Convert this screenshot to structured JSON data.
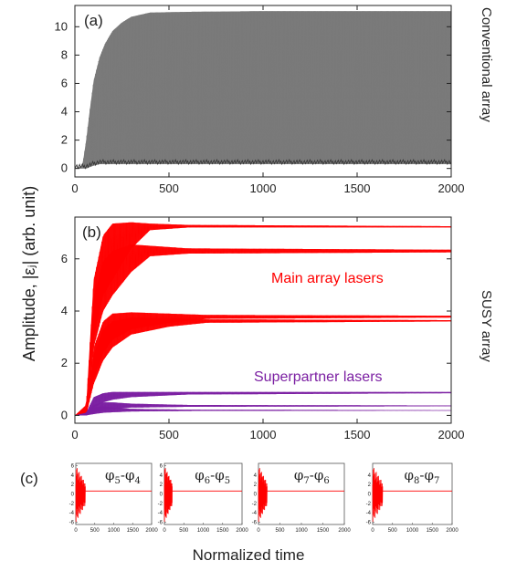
{
  "figure": {
    "xlabel": "Normalized time",
    "ylabel": "Amplitude, |εⱼ| (arb. unit)"
  },
  "chart_data": [
    {
      "id": "a",
      "panel_label": "(a)",
      "side_label": "Conventional array",
      "type": "area",
      "xlim": [
        0,
        2000
      ],
      "ylim": [
        -0.6,
        11.5
      ],
      "xticks": [
        0,
        500,
        1000,
        1500,
        2000
      ],
      "yticks": [
        0,
        2,
        4,
        6,
        8,
        10
      ],
      "colors": {
        "fill": "#7a7a7a",
        "edge": "#333333"
      },
      "series": [
        {
          "x": [
            0,
            40,
            60,
            80,
            100,
            130,
            160,
            200,
            250,
            300,
            400,
            600,
            1000,
            1500,
            2000
          ],
          "upper": [
            0,
            0.2,
            2.0,
            4.2,
            6.2,
            7.8,
            8.8,
            9.7,
            10.3,
            10.7,
            11.0,
            11.05,
            11.1,
            11.1,
            11.1
          ],
          "lower": [
            0,
            0,
            0,
            0.1,
            0.2,
            0.3,
            0.3,
            0.3,
            0.3,
            0.3,
            0.3,
            0.3,
            0.3,
            0.3,
            0.3
          ]
        }
      ]
    },
    {
      "id": "b",
      "panel_label": "(b)",
      "side_label": "SUSY array",
      "type": "line",
      "xlim": [
        0,
        2000
      ],
      "ylim": [
        -0.3,
        7.6
      ],
      "xticks": [
        0,
        500,
        1000,
        1500,
        2000
      ],
      "yticks": [
        0,
        2,
        4,
        6
      ],
      "colors": {
        "main": "#ff0000",
        "partner": "#7b1fa2"
      },
      "annotations": [
        {
          "text": "Main array lasers",
          "color": "#ff0000"
        },
        {
          "text": "Superpartner lasers",
          "color": "#7b1fa2"
        }
      ],
      "series": [
        {
          "group": "main",
          "x": [
            0,
            60,
            100,
            150,
            200,
            300,
            400,
            600,
            2000
          ],
          "upper": [
            0,
            0.4,
            5.2,
            6.9,
            7.35,
            7.4,
            7.35,
            7.3,
            7.25
          ],
          "lower": [
            0,
            0,
            3.0,
            4.6,
            5.2,
            6.4,
            7.1,
            7.2,
            7.2
          ]
        },
        {
          "group": "main",
          "x": [
            0,
            60,
            100,
            150,
            200,
            300,
            400,
            600,
            2000
          ],
          "upper": [
            0,
            0.3,
            4.5,
            5.9,
            6.3,
            6.55,
            6.5,
            6.4,
            6.35
          ],
          "lower": [
            0,
            0,
            2.6,
            4.0,
            4.6,
            5.5,
            6.1,
            6.2,
            6.25
          ]
        },
        {
          "group": "main",
          "x": [
            0,
            60,
            100,
            150,
            200,
            300,
            500,
            700,
            2000
          ],
          "upper": [
            0,
            0.2,
            2.6,
            3.6,
            3.9,
            3.95,
            3.9,
            3.85,
            3.82
          ],
          "lower": [
            0,
            0,
            1.4,
            2.4,
            2.9,
            3.3,
            3.55,
            3.7,
            3.75
          ]
        },
        {
          "group": "main",
          "x": [
            0,
            60,
            100,
            150,
            200,
            300,
            500,
            700,
            2000
          ],
          "upper": [
            0,
            0.2,
            2.3,
            3.3,
            3.6,
            3.75,
            3.72,
            3.68,
            3.65
          ],
          "lower": [
            0,
            0,
            1.2,
            2.1,
            2.6,
            3.1,
            3.4,
            3.55,
            3.6
          ]
        },
        {
          "group": "partner",
          "x": [
            0,
            60,
            100,
            150,
            200,
            300,
            600,
            2000
          ],
          "upper": [
            0,
            0.1,
            0.7,
            0.85,
            0.9,
            0.9,
            0.9,
            0.9
          ],
          "lower": [
            0,
            0,
            0.3,
            0.5,
            0.6,
            0.7,
            0.8,
            0.85
          ]
        },
        {
          "group": "partner",
          "x": [
            0,
            60,
            100,
            150,
            200,
            300,
            600,
            2000
          ],
          "upper": [
            0,
            0.1,
            0.4,
            0.5,
            0.5,
            0.45,
            0.4,
            0.38
          ],
          "lower": [
            0,
            0,
            0.1,
            0.2,
            0.25,
            0.3,
            0.33,
            0.35
          ]
        },
        {
          "group": "partner",
          "x": [
            0,
            60,
            100,
            150,
            200,
            300,
            600,
            2000
          ],
          "upper": [
            0,
            0.05,
            0.3,
            0.35,
            0.3,
            0.25,
            0.22,
            0.2
          ],
          "lower": [
            0,
            0,
            0.05,
            0.1,
            0.12,
            0.15,
            0.17,
            0.18
          ]
        }
      ]
    },
    {
      "id": "c",
      "panel_label": "(c)",
      "type": "line",
      "xlim": [
        0,
        2000
      ],
      "ylim": [
        -6.5,
        6.5
      ],
      "xticks": [
        0,
        500,
        1000,
        1500,
        2000
      ],
      "yticks": [
        6,
        4,
        2,
        0,
        -2,
        -4,
        -6
      ],
      "color": "#ff0000",
      "insets": [
        {
          "phi_a": "φ",
          "sub_a": "5",
          "phi_b": "φ",
          "sub_b": "4",
          "yticks_shown": [
            6,
            4,
            2,
            0,
            -2,
            -4,
            -6
          ],
          "settle": 0.62,
          "burst_end": 250
        },
        {
          "phi_a": "φ",
          "sub_a": "6",
          "phi_b": "φ",
          "sub_b": "5",
          "yticks_shown": [
            6,
            4,
            2,
            0,
            -2,
            -4,
            -6
          ],
          "settle": 0.62,
          "burst_end": 200
        },
        {
          "phi_a": "φ",
          "sub_a": "7",
          "phi_b": "φ",
          "sub_b": "6",
          "yticks_shown": [
            4,
            2,
            0,
            -2,
            -4,
            -6
          ],
          "settle": 0.62,
          "burst_end": 200
        },
        {
          "phi_a": "φ",
          "sub_a": "8",
          "phi_b": "φ",
          "sub_b": "7",
          "yticks_shown": [
            4,
            2,
            0,
            -2,
            -4,
            -6
          ],
          "settle": 0.62,
          "burst_end": 250
        }
      ]
    }
  ]
}
